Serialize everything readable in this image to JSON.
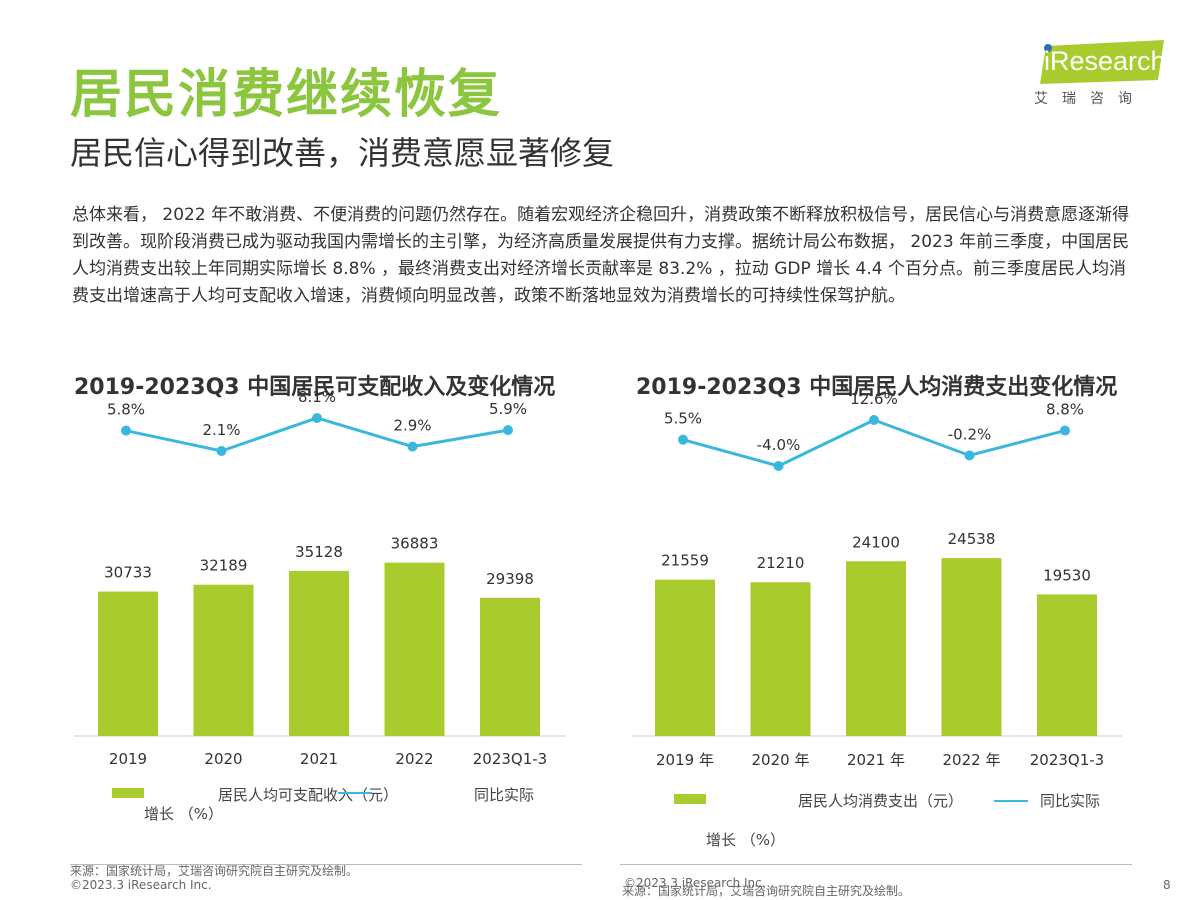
{
  "page": {
    "title": "居民消费继续恢复",
    "subtitle": "居民信心得到改善，消费意愿显著修复",
    "body": "总体来看， 2022 年不敢消费、不便消费的问题仍然存在。随着宏观经济企稳回升，消费政策不断释放积极信号，居民信心与消费意愿逐渐得到改善。现阶段消费已成为驱动我国内需增长的主引擎，为经济高质量发展提供有力支撑。据统计局公布数据， 2023 年前三季度，中国居民人均消费支出较上年同期实际增长 8.8% ，最终消费支出对经济增长贡献率是 83.2% ，拉动 GDP 增长 4.4 个百分点。前三季度居民人均消费支出增速高于人均可支配收入增速，消费倾向明显改善，政策不断落地显效为消费增长的可持续性保驾护航。",
    "page_number": "8",
    "accent_color": "#8cc63f"
  },
  "logo": {
    "text": "iResearch",
    "subtext": "艾瑞咨询"
  },
  "legend": {
    "c1_bar": "居民人均可支配收入（元）",
    "c1_line_a": "同比实际",
    "c1_line_b": "增长 （%）",
    "c2_bar": "居民人均消费支出（元）",
    "c2_line_a": "同比实际",
    "c2_line_b": "增长 （%）"
  },
  "footer": {
    "source_left": "来源：国家统计局，艾瑞咨询研究院自主研究及绘制。",
    "copyright_left": "©2023.3 iResearch Inc.",
    "copyright_right": "©2023.3 iResearch Inc.",
    "source_right": "来源：国家统计局，艾瑞咨询研究院自主研究及绘制。"
  },
  "chart_data": [
    {
      "type": "bar",
      "title": "2019-2023Q3 中国居民可支配收入及变化情况",
      "categories": [
        "2019",
        "2020",
        "2021",
        "2022",
        "2023Q1-3"
      ],
      "series": [
        {
          "name": "居民人均可支配收入（元）",
          "type": "bar",
          "values": [
            30733,
            32189,
            35128,
            36883,
            29398
          ],
          "labels": [
            "30733",
            "32189",
            "35128",
            "36883",
            "29398"
          ],
          "color": "#a9cb2d"
        },
        {
          "name": "同比实际增长（%）",
          "type": "line",
          "values": [
            5.8,
            2.1,
            8.1,
            2.9,
            5.9
          ],
          "labels": [
            "5.8%",
            "2.1%",
            "8.1%",
            "2.9%",
            "5.9%"
          ],
          "color": "#3ab7dd"
        }
      ],
      "legend_position": "bottom"
    },
    {
      "type": "bar",
      "title": "2019-2023Q3 中国居民人均消费支出变化情况",
      "categories": [
        "2019 年",
        "2020 年",
        "2021 年",
        "2022 年",
        "2023Q1-3"
      ],
      "series": [
        {
          "name": "居民人均消费支出（元）",
          "type": "bar",
          "values": [
            21559,
            21210,
            24100,
            24538,
            19530
          ],
          "labels": [
            "21559",
            "21210",
            "24100",
            "24538",
            "19530"
          ],
          "color": "#a9cb2d"
        },
        {
          "name": "同比实际增长（%）",
          "type": "line",
          "values": [
            5.5,
            -4.0,
            12.6,
            -0.2,
            8.8
          ],
          "labels": [
            "5.5%",
            "-4.0%",
            "12.6%",
            "-0.2%",
            "8.8%"
          ],
          "color": "#3ab7dd"
        }
      ],
      "legend_position": "bottom"
    }
  ]
}
